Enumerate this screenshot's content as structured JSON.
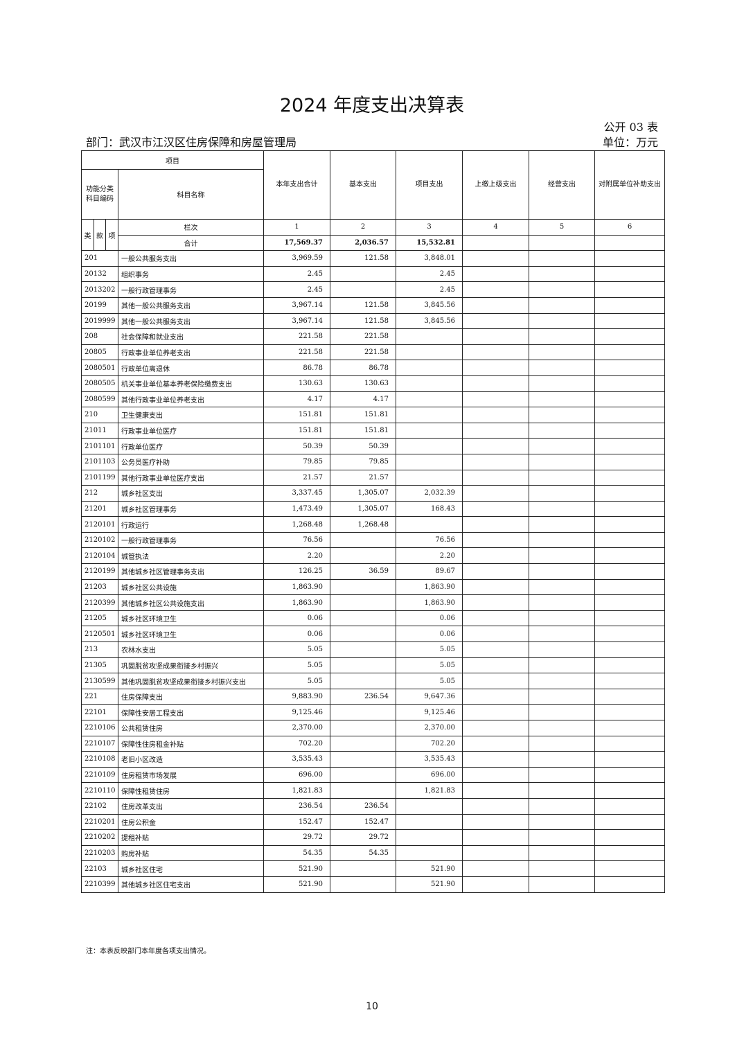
{
  "title": "2024 年度支出决算表",
  "form_no": "公开 03 表",
  "department": "部门：武汉市江汉区住房保障和房屋管理局",
  "unit": "单位：万元",
  "header": {
    "project": "项目",
    "code_label": "功能分类科目编码",
    "name_label": "科目名称",
    "lei": "类",
    "kuan": "款",
    "xiang": "项",
    "column_index_label": "栏次",
    "columns": [
      "本年支出合计",
      "基本支出",
      "项目支出",
      "上缴上级支出",
      "经营支出",
      "对附属单位补助支出"
    ],
    "column_numbers": [
      "1",
      "2",
      "3",
      "4",
      "5",
      "6"
    ]
  },
  "total": {
    "label": "合计",
    "values": [
      "17,569.37",
      "2,036.57",
      "15,532.81",
      "",
      "",
      ""
    ]
  },
  "rows": [
    {
      "code": "201",
      "name": "一般公共服务支出",
      "values": [
        "3,969.59",
        "121.58",
        "3,848.01",
        "",
        "",
        ""
      ]
    },
    {
      "code": "20132",
      "name": "组织事务",
      "values": [
        "2.45",
        "",
        "2.45",
        "",
        "",
        ""
      ]
    },
    {
      "code": "2013202",
      "name": "一般行政管理事务",
      "values": [
        "2.45",
        "",
        "2.45",
        "",
        "",
        ""
      ]
    },
    {
      "code": "20199",
      "name": "其他一般公共服务支出",
      "values": [
        "3,967.14",
        "121.58",
        "3,845.56",
        "",
        "",
        ""
      ]
    },
    {
      "code": "2019999",
      "name": "其他一般公共服务支出",
      "values": [
        "3,967.14",
        "121.58",
        "3,845.56",
        "",
        "",
        ""
      ]
    },
    {
      "code": "208",
      "name": "社会保障和就业支出",
      "values": [
        "221.58",
        "221.58",
        "",
        "",
        "",
        ""
      ]
    },
    {
      "code": "20805",
      "name": "行政事业单位养老支出",
      "values": [
        "221.58",
        "221.58",
        "",
        "",
        "",
        ""
      ]
    },
    {
      "code": "2080501",
      "name": "行政单位离退休",
      "values": [
        "86.78",
        "86.78",
        "",
        "",
        "",
        ""
      ]
    },
    {
      "code": "2080505",
      "name": "机关事业单位基本养老保险缴费支出",
      "values": [
        "130.63",
        "130.63",
        "",
        "",
        "",
        ""
      ]
    },
    {
      "code": "2080599",
      "name": "其他行政事业单位养老支出",
      "values": [
        "4.17",
        "4.17",
        "",
        "",
        "",
        ""
      ]
    },
    {
      "code": "210",
      "name": "卫生健康支出",
      "values": [
        "151.81",
        "151.81",
        "",
        "",
        "",
        ""
      ]
    },
    {
      "code": "21011",
      "name": "行政事业单位医疗",
      "values": [
        "151.81",
        "151.81",
        "",
        "",
        "",
        ""
      ]
    },
    {
      "code": "2101101",
      "name": "行政单位医疗",
      "values": [
        "50.39",
        "50.39",
        "",
        "",
        "",
        ""
      ]
    },
    {
      "code": "2101103",
      "name": "公务员医疗补助",
      "values": [
        "79.85",
        "79.85",
        "",
        "",
        "",
        ""
      ]
    },
    {
      "code": "2101199",
      "name": "其他行政事业单位医疗支出",
      "values": [
        "21.57",
        "21.57",
        "",
        "",
        "",
        ""
      ]
    },
    {
      "code": "212",
      "name": "城乡社区支出",
      "values": [
        "3,337.45",
        "1,305.07",
        "2,032.39",
        "",
        "",
        ""
      ]
    },
    {
      "code": "21201",
      "name": "城乡社区管理事务",
      "values": [
        "1,473.49",
        "1,305.07",
        "168.43",
        "",
        "",
        ""
      ]
    },
    {
      "code": "2120101",
      "name": "行政运行",
      "values": [
        "1,268.48",
        "1,268.48",
        "",
        "",
        "",
        ""
      ]
    },
    {
      "code": "2120102",
      "name": "一般行政管理事务",
      "values": [
        "76.56",
        "",
        "76.56",
        "",
        "",
        ""
      ]
    },
    {
      "code": "2120104",
      "name": "城管执法",
      "values": [
        "2.20",
        "",
        "2.20",
        "",
        "",
        ""
      ]
    },
    {
      "code": "2120199",
      "name": "其他城乡社区管理事务支出",
      "values": [
        "126.25",
        "36.59",
        "89.67",
        "",
        "",
        ""
      ]
    },
    {
      "code": "21203",
      "name": "城乡社区公共设施",
      "values": [
        "1,863.90",
        "",
        "1,863.90",
        "",
        "",
        ""
      ]
    },
    {
      "code": "2120399",
      "name": "其他城乡社区公共设施支出",
      "values": [
        "1,863.90",
        "",
        "1,863.90",
        "",
        "",
        ""
      ]
    },
    {
      "code": "21205",
      "name": "城乡社区环境卫生",
      "values": [
        "0.06",
        "",
        "0.06",
        "",
        "",
        ""
      ]
    },
    {
      "code": "2120501",
      "name": "城乡社区环境卫生",
      "values": [
        "0.06",
        "",
        "0.06",
        "",
        "",
        ""
      ]
    },
    {
      "code": "213",
      "name": "农林水支出",
      "values": [
        "5.05",
        "",
        "5.05",
        "",
        "",
        ""
      ]
    },
    {
      "code": "21305",
      "name": "巩固脱贫攻坚成果衔接乡村振兴",
      "values": [
        "5.05",
        "",
        "5.05",
        "",
        "",
        ""
      ]
    },
    {
      "code": "2130599",
      "name": "其他巩固脱贫攻坚成果衔接乡村振兴支出",
      "values": [
        "5.05",
        "",
        "5.05",
        "",
        "",
        ""
      ]
    },
    {
      "code": "221",
      "name": "住房保障支出",
      "values": [
        "9,883.90",
        "236.54",
        "9,647.36",
        "",
        "",
        ""
      ]
    },
    {
      "code": "22101",
      "name": "保障性安居工程支出",
      "values": [
        "9,125.46",
        "",
        "9,125.46",
        "",
        "",
        ""
      ]
    },
    {
      "code": "2210106",
      "name": "公共租赁住房",
      "values": [
        "2,370.00",
        "",
        "2,370.00",
        "",
        "",
        ""
      ]
    },
    {
      "code": "2210107",
      "name": "保障性住房租金补贴",
      "values": [
        "702.20",
        "",
        "702.20",
        "",
        "",
        ""
      ]
    },
    {
      "code": "2210108",
      "name": "老旧小区改造",
      "values": [
        "3,535.43",
        "",
        "3,535.43",
        "",
        "",
        ""
      ]
    },
    {
      "code": "2210109",
      "name": "住房租赁市场发展",
      "values": [
        "696.00",
        "",
        "696.00",
        "",
        "",
        ""
      ]
    },
    {
      "code": "2210110",
      "name": "保障性租赁住房",
      "values": [
        "1,821.83",
        "",
        "1,821.83",
        "",
        "",
        ""
      ]
    },
    {
      "code": "22102",
      "name": "住房改革支出",
      "values": [
        "236.54",
        "236.54",
        "",
        "",
        "",
        ""
      ]
    },
    {
      "code": "2210201",
      "name": "住房公积金",
      "values": [
        "152.47",
        "152.47",
        "",
        "",
        "",
        ""
      ]
    },
    {
      "code": "2210202",
      "name": "提租补贴",
      "values": [
        "29.72",
        "29.72",
        "",
        "",
        "",
        ""
      ]
    },
    {
      "code": "2210203",
      "name": "购房补贴",
      "values": [
        "54.35",
        "54.35",
        "",
        "",
        "",
        ""
      ]
    },
    {
      "code": "22103",
      "name": "城乡社区住宅",
      "values": [
        "521.90",
        "",
        "521.90",
        "",
        "",
        ""
      ]
    },
    {
      "code": "2210399",
      "name": "其他城乡社区住宅支出",
      "values": [
        "521.90",
        "",
        "521.90",
        "",
        "",
        ""
      ]
    }
  ],
  "note": "注：本表反映部门本年度各项支出情况。",
  "page_number": "10"
}
